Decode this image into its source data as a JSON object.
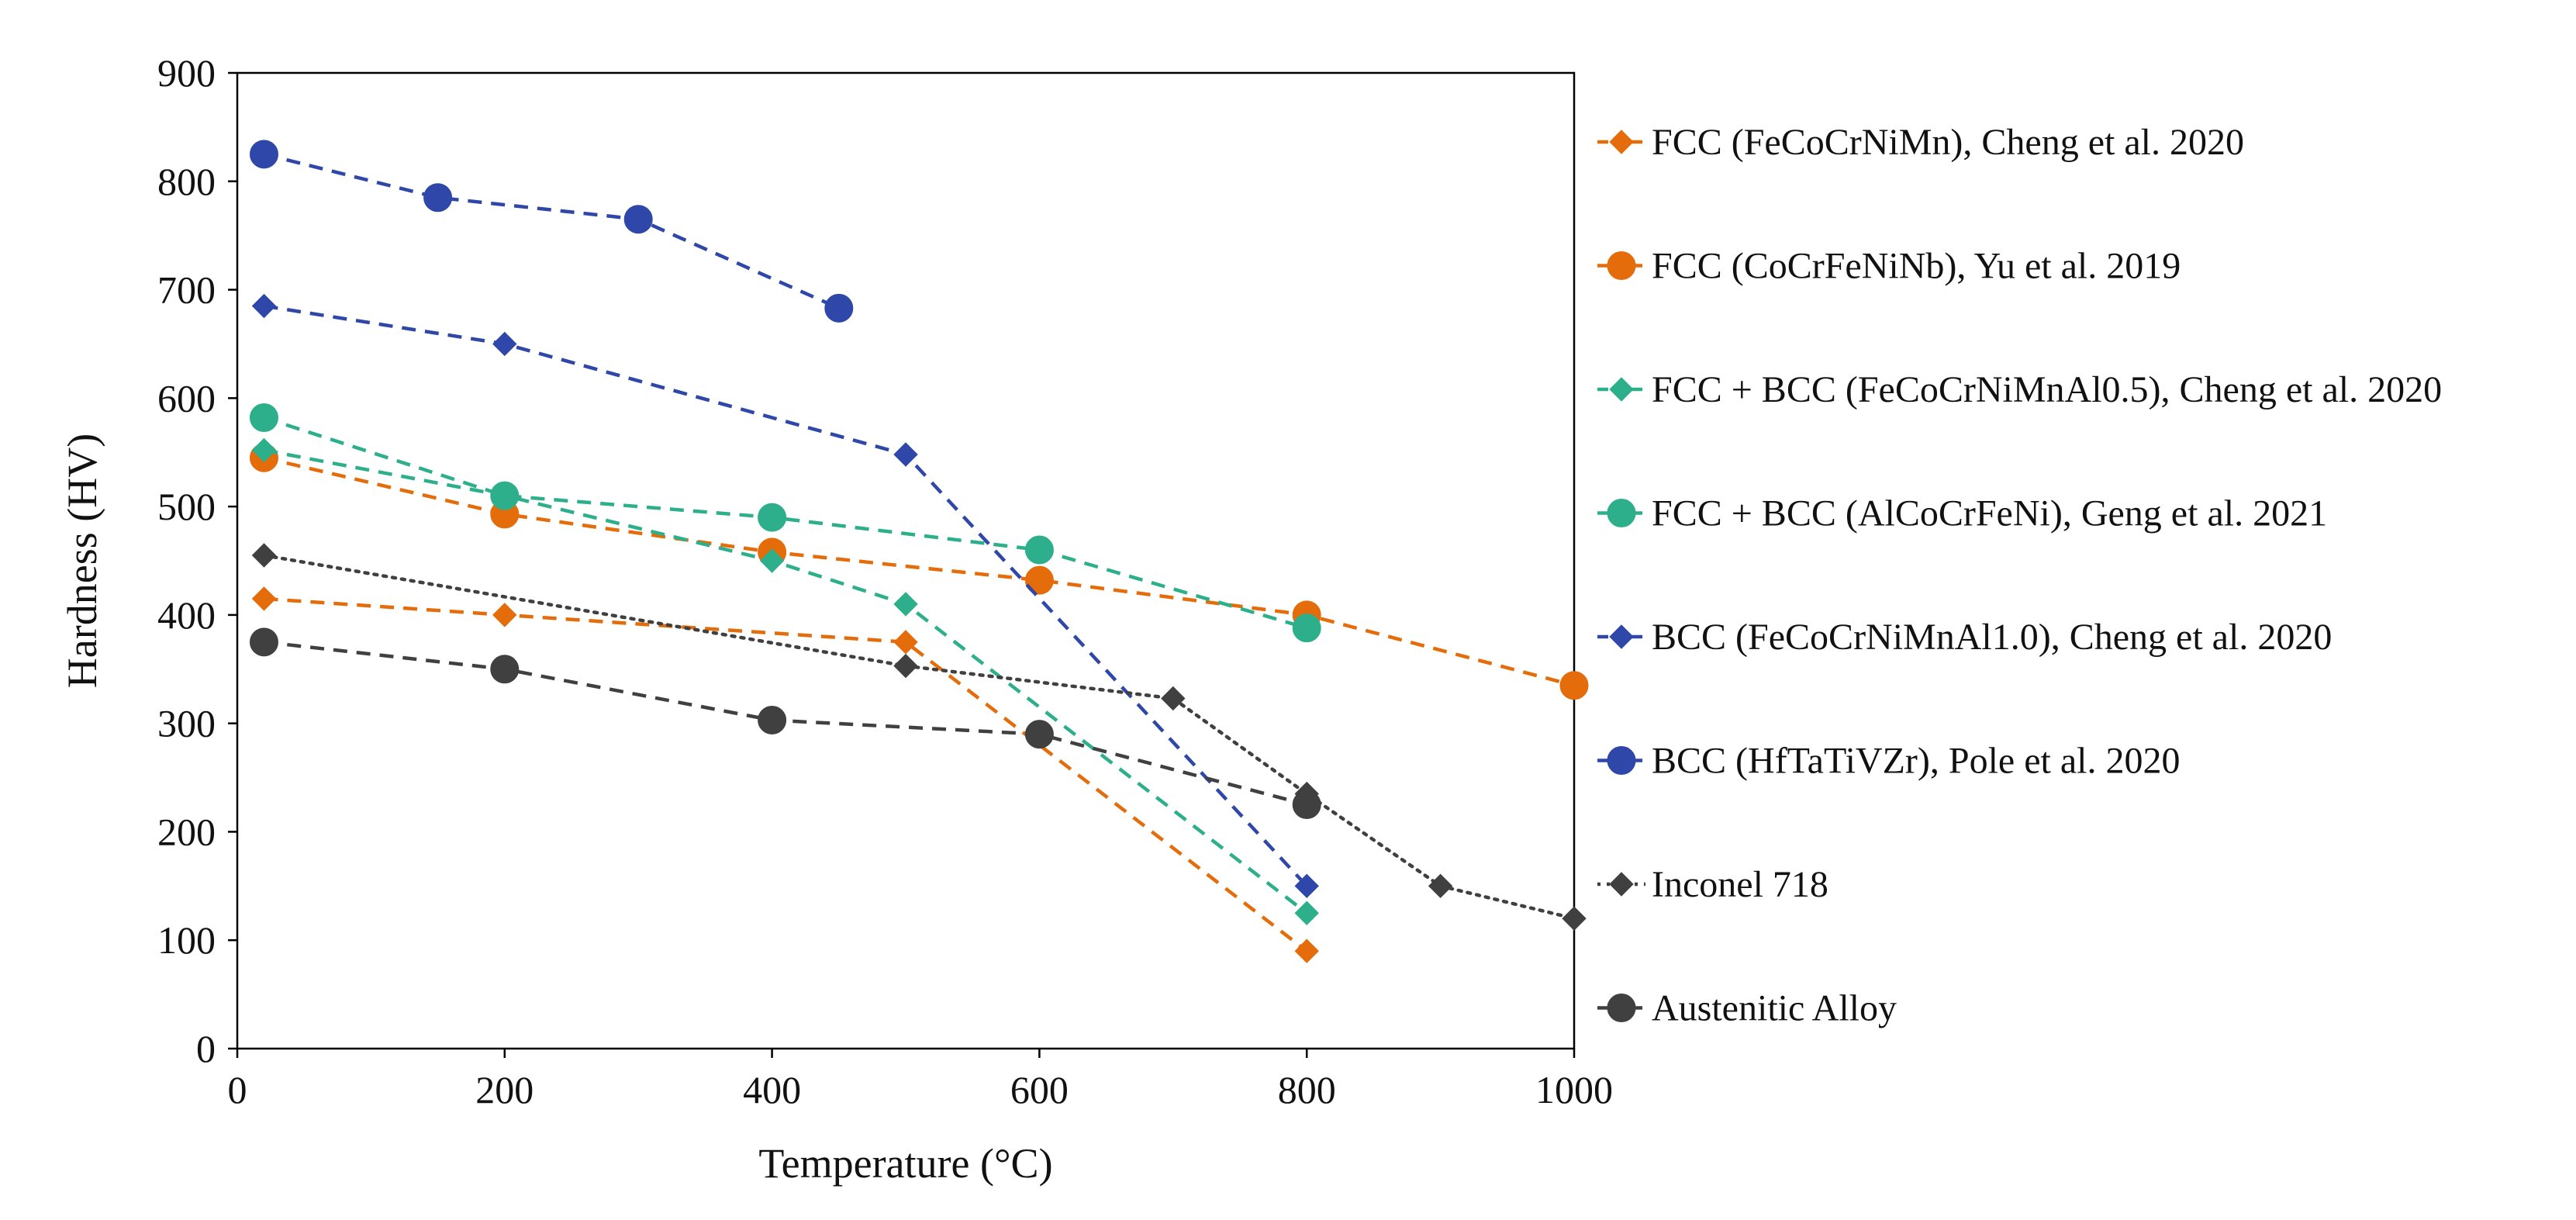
{
  "chart_data": {
    "type": "line",
    "title": "",
    "xlabel": "Temperature (°C)",
    "ylabel": "Hardness (HV)",
    "xlim": [
      0,
      1000
    ],
    "ylim": [
      0,
      900
    ],
    "xticks": [
      0,
      200,
      400,
      600,
      800,
      1000
    ],
    "yticks": [
      0,
      100,
      200,
      300,
      400,
      500,
      600,
      700,
      800,
      900
    ],
    "grid": false,
    "legend_position": "right",
    "series": [
      {
        "name": "FCC (FeCoCrNiMn), Cheng et al. 2020",
        "color": "#E46C0A",
        "marker": "diamond",
        "line": "dashed",
        "points": [
          [
            20,
            415
          ],
          [
            200,
            400
          ],
          [
            500,
            375
          ],
          [
            800,
            90
          ]
        ]
      },
      {
        "name": "FCC (CoCrFeNiNb), Yu et al. 2019",
        "color": "#E46C0A",
        "marker": "circle",
        "line": "dashed",
        "points": [
          [
            20,
            545
          ],
          [
            200,
            493
          ],
          [
            400,
            458
          ],
          [
            600,
            432
          ],
          [
            800,
            400
          ],
          [
            1000,
            335
          ]
        ]
      },
      {
        "name": "FCC + BCC (FeCoCrNiMnAl0.5), Cheng et al. 2020",
        "color": "#2EAF8C",
        "marker": "diamond",
        "line": "dashed",
        "points": [
          [
            20,
            552
          ],
          [
            200,
            510
          ],
          [
            400,
            450
          ],
          [
            500,
            410
          ],
          [
            800,
            125
          ]
        ]
      },
      {
        "name": "FCC + BCC (AlCoCrFeNi), Geng et al. 2021",
        "color": "#2EAF8C",
        "marker": "circle",
        "line": "dashed",
        "points": [
          [
            20,
            582
          ],
          [
            200,
            510
          ],
          [
            400,
            490
          ],
          [
            600,
            460
          ],
          [
            800,
            388
          ]
        ]
      },
      {
        "name": "BCC (FeCoCrNiMnAl1.0), Cheng et al. 2020",
        "color": "#2E47A8",
        "marker": "diamond",
        "line": "dashed",
        "points": [
          [
            20,
            685
          ],
          [
            200,
            650
          ],
          [
            500,
            548
          ],
          [
            800,
            150
          ]
        ]
      },
      {
        "name": "BCC (HfTaTiVZr), Pole et al. 2020",
        "color": "#2E47A8",
        "marker": "circle",
        "line": "dashed",
        "points": [
          [
            20,
            825
          ],
          [
            150,
            785
          ],
          [
            300,
            765
          ],
          [
            450,
            683
          ]
        ]
      },
      {
        "name": "Inconel 718",
        "color": "#404040",
        "marker": "diamond",
        "line": "dotted",
        "points": [
          [
            20,
            455
          ],
          [
            500,
            353
          ],
          [
            700,
            323
          ],
          [
            800,
            235
          ],
          [
            900,
            150
          ],
          [
            1000,
            120
          ]
        ]
      },
      {
        "name": "Austenitic Alloy",
        "color": "#404040",
        "marker": "circle",
        "line": "dashed",
        "points": [
          [
            20,
            375
          ],
          [
            200,
            350
          ],
          [
            400,
            303
          ],
          [
            600,
            290
          ],
          [
            800,
            225
          ]
        ]
      }
    ]
  }
}
